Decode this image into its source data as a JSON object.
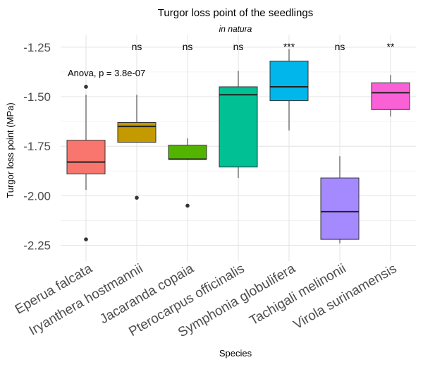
{
  "chart_data": {
    "type": "boxplot",
    "title": "Turgor loss point of the seedlings",
    "subtitle": "in natura",
    "xlabel": "Species",
    "ylabel": "Turgor loss point (MPa)",
    "ylim": [
      -2.33,
      -1.19
    ],
    "yticks": [
      -1.25,
      -1.5,
      -1.75,
      -2.0,
      -2.25
    ],
    "ytick_labels": [
      "-1.25",
      "-1.50",
      "-1.75",
      "-2.00",
      "-2.25"
    ],
    "annotation": "Anova, p = 3.8e-07",
    "grid": true,
    "legend": "none",
    "categories": [
      "Eperua falcata",
      "Iryanthera hostmannii",
      "Jacaranda copaia",
      "Pterocarpus officinalis",
      "Symphonia globulifera",
      "Tachigali melinonii",
      "Virola surinamensis"
    ],
    "boxes": [
      {
        "species": "Eperua falcata",
        "whisker_low": -1.97,
        "q1": -1.89,
        "median": -1.83,
        "q3": -1.72,
        "whisker_high": -1.49,
        "outliers": [
          -1.45,
          -2.22
        ],
        "color": "#F8766D",
        "significance": ""
      },
      {
        "species": "Iryanthera hostmannii",
        "whisker_low": -1.73,
        "q1": -1.73,
        "median": -1.65,
        "q3": -1.63,
        "whisker_high": -1.49,
        "outliers": [
          -2.01
        ],
        "color": "#C49A00",
        "significance": "ns"
      },
      {
        "species": "Jacaranda copaia",
        "whisker_low": -1.82,
        "q1": -1.815,
        "median": -1.815,
        "q3": -1.745,
        "whisker_high": -1.71,
        "outliers": [
          -2.05
        ],
        "color": "#53B400",
        "significance": "ns"
      },
      {
        "species": "Pterocarpus officinalis",
        "whisker_low": -1.91,
        "q1": -1.855,
        "median": -1.49,
        "q3": -1.45,
        "whisker_high": -1.37,
        "outliers": [],
        "color": "#00C094",
        "significance": "ns"
      },
      {
        "species": "Symphonia globulifera",
        "whisker_low": -1.67,
        "q1": -1.52,
        "median": -1.45,
        "q3": -1.32,
        "whisker_high": -1.26,
        "outliers": [],
        "color": "#00B6EB",
        "significance": "***"
      },
      {
        "species": "Tachigali melinonii",
        "whisker_low": -2.24,
        "q1": -2.22,
        "median": -2.08,
        "q3": -1.91,
        "whisker_high": -1.8,
        "outliers": [],
        "color": "#A58AFF",
        "significance": "ns"
      },
      {
        "species": "Virola surinamensis",
        "whisker_low": -1.6,
        "q1": -1.565,
        "median": -1.48,
        "q3": -1.43,
        "whisker_high": -1.39,
        "outliers": [],
        "color": "#FB61D7",
        "significance": "**"
      }
    ]
  }
}
